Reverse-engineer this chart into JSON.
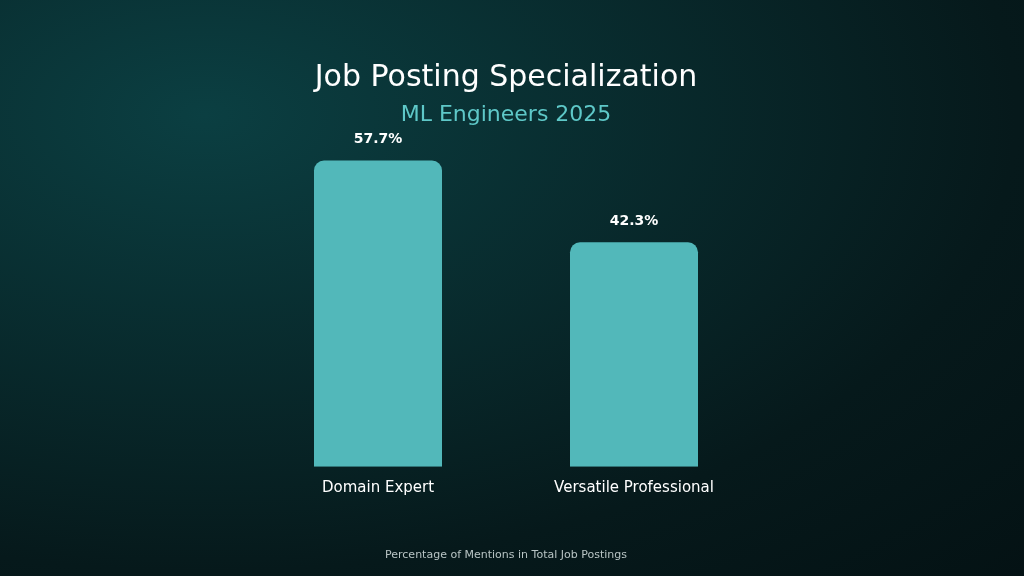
{
  "chart_data": {
    "type": "bar",
    "title": "Job Posting Specialization",
    "subtitle": "ML Engineers 2025",
    "xlabel": "Percentage of Mentions in Total Job Postings",
    "categories": [
      "Domain Expert",
      "Versatile Professional"
    ],
    "series": [
      {
        "color": "#52b8ba",
        "values": [
          57.7,
          42.3
        ],
        "value_labels": [
          "57.7%",
          "42.3%"
        ]
      }
    ],
    "grid": false,
    "legend": false
  }
}
